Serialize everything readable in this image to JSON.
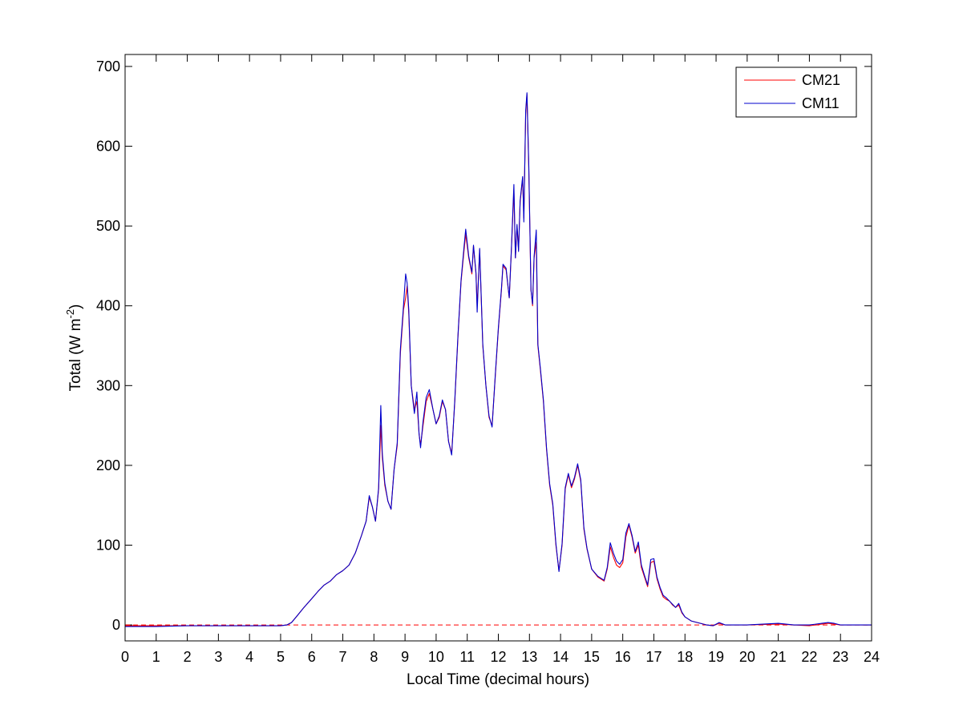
{
  "chart_data": {
    "type": "line",
    "xlabel": "Local Time (decimal hours)",
    "ylabel": {
      "text": "Total (W m",
      "superscript": "-2",
      "suffix": ")"
    },
    "xlim": [
      0,
      24
    ],
    "ylim": [
      -20,
      715
    ],
    "xticks": [
      0,
      1,
      2,
      3,
      4,
      5,
      6,
      7,
      8,
      9,
      10,
      11,
      12,
      13,
      14,
      15,
      16,
      17,
      18,
      19,
      20,
      21,
      22,
      23,
      24
    ],
    "yticks": [
      0,
      100,
      200,
      300,
      400,
      500,
      600,
      700
    ],
    "grid": false,
    "legend_position": "top-right",
    "zero_line": {
      "y": 0,
      "color": "#ff0000",
      "style": "dashed"
    },
    "series": [
      {
        "name": "CM21",
        "color": "#ff0000",
        "points": [
          [
            0,
            -1
          ],
          [
            0.5,
            -1
          ],
          [
            1,
            -1
          ],
          [
            2,
            -1
          ],
          [
            3,
            -1
          ],
          [
            4,
            -1
          ],
          [
            5,
            -1
          ],
          [
            5.2,
            0
          ],
          [
            5.35,
            3
          ],
          [
            5.5,
            10
          ],
          [
            5.75,
            22
          ],
          [
            6,
            33
          ],
          [
            6.2,
            42
          ],
          [
            6.4,
            50
          ],
          [
            6.6,
            55
          ],
          [
            6.8,
            63
          ],
          [
            7,
            68
          ],
          [
            7.2,
            75
          ],
          [
            7.4,
            90
          ],
          [
            7.6,
            112
          ],
          [
            7.75,
            130
          ],
          [
            7.85,
            160
          ],
          [
            7.95,
            148
          ],
          [
            8.05,
            130
          ],
          [
            8.15,
            170
          ],
          [
            8.22,
            250
          ],
          [
            8.27,
            210
          ],
          [
            8.35,
            175
          ],
          [
            8.45,
            155
          ],
          [
            8.55,
            145
          ],
          [
            8.65,
            195
          ],
          [
            8.75,
            225
          ],
          [
            8.85,
            340
          ],
          [
            8.95,
            395
          ],
          [
            9.02,
            410
          ],
          [
            9.07,
            425
          ],
          [
            9.12,
            390
          ],
          [
            9.2,
            300
          ],
          [
            9.3,
            270
          ],
          [
            9.38,
            280
          ],
          [
            9.45,
            240
          ],
          [
            9.5,
            225
          ],
          [
            9.58,
            250
          ],
          [
            9.68,
            280
          ],
          [
            9.78,
            290
          ],
          [
            9.9,
            270
          ],
          [
            10,
            252
          ],
          [
            10.1,
            260
          ],
          [
            10.2,
            280
          ],
          [
            10.3,
            270
          ],
          [
            10.4,
            230
          ],
          [
            10.5,
            215
          ],
          [
            10.6,
            280
          ],
          [
            10.7,
            360
          ],
          [
            10.8,
            430
          ],
          [
            10.9,
            470
          ],
          [
            10.95,
            490
          ],
          [
            11.05,
            460
          ],
          [
            11.15,
            440
          ],
          [
            11.2,
            475
          ],
          [
            11.28,
            440
          ],
          [
            11.32,
            400
          ],
          [
            11.4,
            470
          ],
          [
            11.5,
            350
          ],
          [
            11.6,
            300
          ],
          [
            11.7,
            260
          ],
          [
            11.8,
            250
          ],
          [
            11.9,
            310
          ],
          [
            12,
            370
          ],
          [
            12.1,
            420
          ],
          [
            12.15,
            450
          ],
          [
            12.25,
            445
          ],
          [
            12.35,
            410
          ],
          [
            12.42,
            470
          ],
          [
            12.5,
            545
          ],
          [
            12.55,
            460
          ],
          [
            12.6,
            500
          ],
          [
            12.65,
            470
          ],
          [
            12.7,
            530
          ],
          [
            12.78,
            560
          ],
          [
            12.82,
            510
          ],
          [
            12.88,
            640
          ],
          [
            12.92,
            665
          ],
          [
            12.98,
            570
          ],
          [
            13.05,
            420
          ],
          [
            13.1,
            400
          ],
          [
            13.15,
            460
          ],
          [
            13.22,
            480
          ],
          [
            13.27,
            350
          ],
          [
            13.35,
            320
          ],
          [
            13.45,
            280
          ],
          [
            13.55,
            220
          ],
          [
            13.65,
            175
          ],
          [
            13.75,
            150
          ],
          [
            13.85,
            100
          ],
          [
            13.95,
            68
          ],
          [
            14.05,
            100
          ],
          [
            14.15,
            170
          ],
          [
            14.25,
            188
          ],
          [
            14.35,
            172
          ],
          [
            14.45,
            183
          ],
          [
            14.55,
            200
          ],
          [
            14.65,
            180
          ],
          [
            14.75,
            120
          ],
          [
            14.85,
            95
          ],
          [
            15,
            70
          ],
          [
            15.2,
            60
          ],
          [
            15.4,
            55
          ],
          [
            15.5,
            70
          ],
          [
            15.6,
            98
          ],
          [
            15.7,
            85
          ],
          [
            15.8,
            75
          ],
          [
            15.9,
            72
          ],
          [
            16,
            78
          ],
          [
            16.1,
            110
          ],
          [
            16.2,
            125
          ],
          [
            16.3,
            110
          ],
          [
            16.4,
            90
          ],
          [
            16.5,
            100
          ],
          [
            16.6,
            72
          ],
          [
            16.7,
            60
          ],
          [
            16.8,
            48
          ],
          [
            16.9,
            78
          ],
          [
            17,
            80
          ],
          [
            17.1,
            58
          ],
          [
            17.2,
            45
          ],
          [
            17.3,
            35
          ],
          [
            17.4,
            32
          ],
          [
            17.5,
            30
          ],
          [
            17.6,
            25
          ],
          [
            17.7,
            22
          ],
          [
            17.8,
            25
          ],
          [
            17.9,
            15
          ],
          [
            18,
            10
          ],
          [
            18.2,
            5
          ],
          [
            18.5,
            2
          ],
          [
            18.7,
            0
          ],
          [
            18.9,
            -1
          ],
          [
            19.1,
            2
          ],
          [
            19.3,
            0
          ],
          [
            20,
            0
          ],
          [
            21,
            1
          ],
          [
            21.5,
            0
          ],
          [
            22,
            -1
          ],
          [
            22.4,
            1
          ],
          [
            22.6,
            2
          ],
          [
            22.8,
            1
          ],
          [
            23,
            0
          ],
          [
            24,
            0
          ]
        ]
      },
      {
        "name": "CM11",
        "color": "#0000cc",
        "points": [
          [
            0,
            -2
          ],
          [
            0.5,
            -2
          ],
          [
            1,
            -2
          ],
          [
            2,
            -1
          ],
          [
            3,
            -1
          ],
          [
            4,
            -1
          ],
          [
            5,
            -1
          ],
          [
            5.2,
            0
          ],
          [
            5.35,
            3
          ],
          [
            5.5,
            10
          ],
          [
            5.75,
            22
          ],
          [
            6,
            33
          ],
          [
            6.2,
            42
          ],
          [
            6.4,
            50
          ],
          [
            6.6,
            55
          ],
          [
            6.8,
            63
          ],
          [
            7,
            68
          ],
          [
            7.2,
            75
          ],
          [
            7.4,
            90
          ],
          [
            7.6,
            112
          ],
          [
            7.75,
            130
          ],
          [
            7.85,
            162
          ],
          [
            7.95,
            148
          ],
          [
            8.05,
            130
          ],
          [
            8.15,
            172
          ],
          [
            8.22,
            275
          ],
          [
            8.27,
            215
          ],
          [
            8.35,
            178
          ],
          [
            8.45,
            155
          ],
          [
            8.55,
            145
          ],
          [
            8.65,
            195
          ],
          [
            8.75,
            228
          ],
          [
            8.85,
            345
          ],
          [
            8.95,
            400
          ],
          [
            9.02,
            440
          ],
          [
            9.07,
            428
          ],
          [
            9.12,
            395
          ],
          [
            9.2,
            300
          ],
          [
            9.3,
            265
          ],
          [
            9.38,
            292
          ],
          [
            9.45,
            240
          ],
          [
            9.5,
            222
          ],
          [
            9.58,
            255
          ],
          [
            9.68,
            285
          ],
          [
            9.78,
            295
          ],
          [
            9.9,
            270
          ],
          [
            10,
            252
          ],
          [
            10.1,
            262
          ],
          [
            10.2,
            282
          ],
          [
            10.3,
            270
          ],
          [
            10.4,
            230
          ],
          [
            10.5,
            213
          ],
          [
            10.6,
            282
          ],
          [
            10.7,
            362
          ],
          [
            10.8,
            432
          ],
          [
            10.9,
            475
          ],
          [
            10.95,
            496
          ],
          [
            11.05,
            462
          ],
          [
            11.15,
            442
          ],
          [
            11.2,
            476
          ],
          [
            11.28,
            442
          ],
          [
            11.32,
            392
          ],
          [
            11.4,
            472
          ],
          [
            11.5,
            352
          ],
          [
            11.6,
            300
          ],
          [
            11.7,
            262
          ],
          [
            11.8,
            248
          ],
          [
            11.9,
            312
          ],
          [
            12,
            372
          ],
          [
            12.1,
            422
          ],
          [
            12.15,
            452
          ],
          [
            12.25,
            447
          ],
          [
            12.35,
            410
          ],
          [
            12.42,
            472
          ],
          [
            12.5,
            552
          ],
          [
            12.55,
            460
          ],
          [
            12.6,
            502
          ],
          [
            12.65,
            468
          ],
          [
            12.7,
            532
          ],
          [
            12.78,
            562
          ],
          [
            12.82,
            505
          ],
          [
            12.88,
            645
          ],
          [
            12.92,
            667
          ],
          [
            12.98,
            575
          ],
          [
            13.05,
            420
          ],
          [
            13.1,
            402
          ],
          [
            13.15,
            462
          ],
          [
            13.22,
            495
          ],
          [
            13.27,
            352
          ],
          [
            13.35,
            322
          ],
          [
            13.45,
            282
          ],
          [
            13.55,
            222
          ],
          [
            13.65,
            177
          ],
          [
            13.75,
            152
          ],
          [
            13.85,
            102
          ],
          [
            13.95,
            67
          ],
          [
            14.05,
            102
          ],
          [
            14.15,
            172
          ],
          [
            14.25,
            190
          ],
          [
            14.35,
            174
          ],
          [
            14.45,
            185
          ],
          [
            14.55,
            202
          ],
          [
            14.65,
            182
          ],
          [
            14.75,
            122
          ],
          [
            14.85,
            96
          ],
          [
            15,
            70
          ],
          [
            15.2,
            61
          ],
          [
            15.4,
            56
          ],
          [
            15.5,
            72
          ],
          [
            15.6,
            103
          ],
          [
            15.7,
            90
          ],
          [
            15.8,
            80
          ],
          [
            15.9,
            76
          ],
          [
            16,
            82
          ],
          [
            16.1,
            115
          ],
          [
            16.2,
            127
          ],
          [
            16.3,
            112
          ],
          [
            16.4,
            92
          ],
          [
            16.5,
            104
          ],
          [
            16.6,
            75
          ],
          [
            16.7,
            62
          ],
          [
            16.8,
            50
          ],
          [
            16.9,
            82
          ],
          [
            17,
            83
          ],
          [
            17.1,
            60
          ],
          [
            17.2,
            47
          ],
          [
            17.3,
            37
          ],
          [
            17.4,
            34
          ],
          [
            17.5,
            30
          ],
          [
            17.6,
            26
          ],
          [
            17.7,
            22
          ],
          [
            17.8,
            27
          ],
          [
            17.9,
            16
          ],
          [
            18,
            10
          ],
          [
            18.2,
            5
          ],
          [
            18.5,
            2
          ],
          [
            18.7,
            0
          ],
          [
            18.9,
            -1
          ],
          [
            19.1,
            3
          ],
          [
            19.3,
            0
          ],
          [
            20,
            0
          ],
          [
            21,
            2
          ],
          [
            21.5,
            0
          ],
          [
            22,
            0
          ],
          [
            22.4,
            2
          ],
          [
            22.6,
            3
          ],
          [
            22.8,
            2
          ],
          [
            23,
            0
          ],
          [
            24,
            0
          ]
        ]
      }
    ]
  }
}
